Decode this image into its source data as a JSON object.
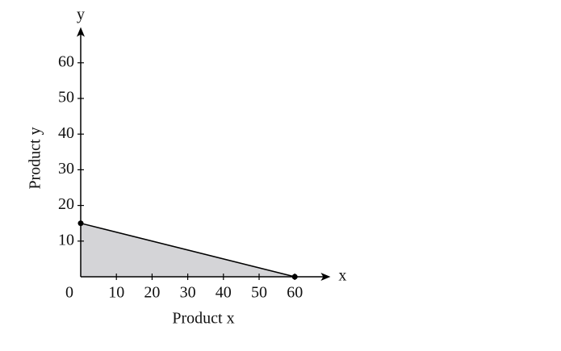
{
  "chart_data": {
    "type": "area",
    "x_label": "Product x",
    "y_label": "Product y",
    "x_axis_name": "x",
    "y_axis_name": "y",
    "x": [
      0,
      60
    ],
    "values": [
      15,
      0
    ],
    "color": "#d4d4d7",
    "line_color": "#000000",
    "xlim": [
      0,
      70
    ],
    "ylim": [
      0,
      70
    ],
    "xticks": [
      0,
      10,
      20,
      30,
      40,
      50,
      60
    ],
    "yticks": [
      10,
      20,
      30,
      40,
      50,
      60
    ],
    "grid": false
  }
}
